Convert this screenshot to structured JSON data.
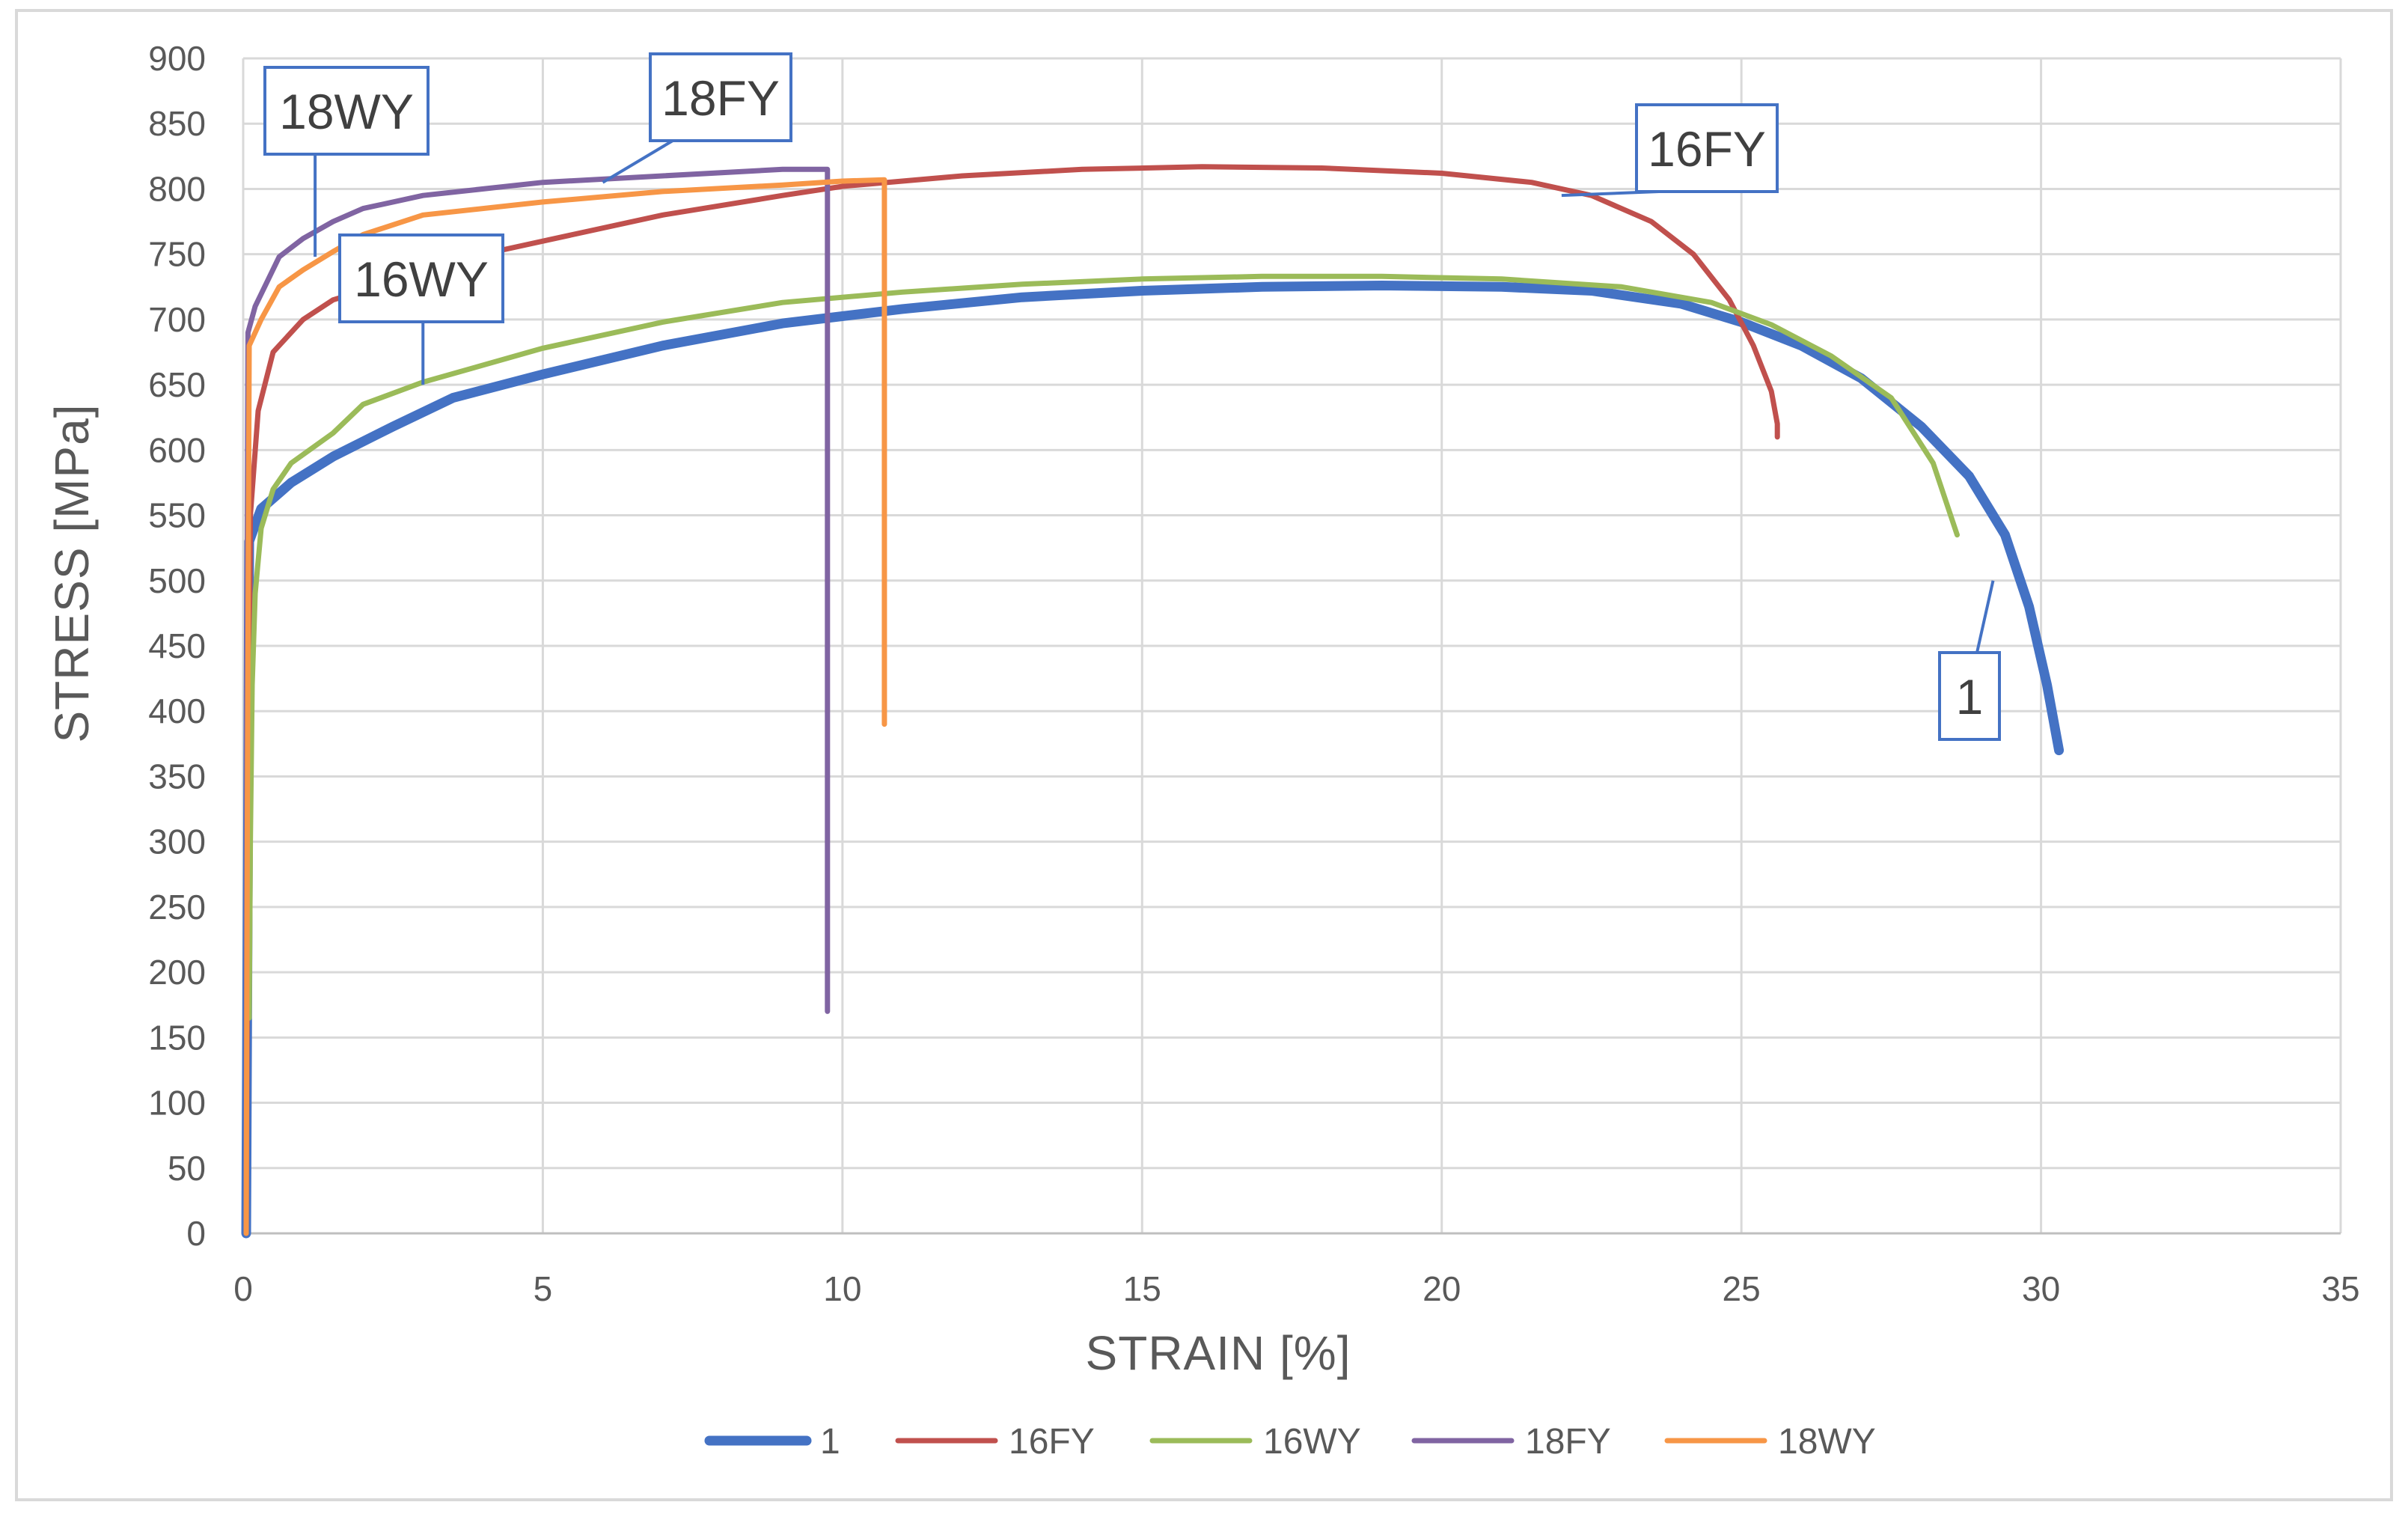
{
  "chart_data": {
    "type": "line",
    "title": "",
    "xlabel": "STRAIN [%]",
    "ylabel": "STRESS [MPa]",
    "xlim": [
      0,
      35
    ],
    "ylim": [
      0,
      900
    ],
    "xticks": [
      0,
      5,
      10,
      15,
      20,
      25,
      30,
      35
    ],
    "yticks": [
      0,
      50,
      100,
      150,
      200,
      250,
      300,
      350,
      400,
      450,
      500,
      550,
      600,
      650,
      700,
      750,
      800,
      850,
      900
    ],
    "grid": true,
    "legend_position": "bottom",
    "series": [
      {
        "name": "1",
        "color": "#4472C4",
        "points": [
          [
            0.05,
            0
          ],
          [
            0.08,
            300
          ],
          [
            0.1,
            530
          ],
          [
            0.3,
            555
          ],
          [
            0.8,
            575
          ],
          [
            1.5,
            595
          ],
          [
            2.5,
            618
          ],
          [
            3.5,
            640
          ],
          [
            5,
            658
          ],
          [
            7,
            680
          ],
          [
            9,
            697
          ],
          [
            11,
            708
          ],
          [
            13,
            717
          ],
          [
            15,
            722
          ],
          [
            17,
            725
          ],
          [
            19,
            726
          ],
          [
            21,
            725
          ],
          [
            22.5,
            722
          ],
          [
            24,
            712
          ],
          [
            25,
            698
          ],
          [
            26,
            680
          ],
          [
            27,
            655
          ],
          [
            28,
            618
          ],
          [
            28.8,
            580
          ],
          [
            29.4,
            535
          ],
          [
            29.8,
            480
          ],
          [
            30.1,
            420
          ],
          [
            30.3,
            370
          ]
        ]
      },
      {
        "name": "16FY",
        "color": "#C0504D",
        "points": [
          [
            0.05,
            0
          ],
          [
            0.08,
            300
          ],
          [
            0.12,
            550
          ],
          [
            0.25,
            630
          ],
          [
            0.5,
            675
          ],
          [
            1,
            700
          ],
          [
            1.5,
            715
          ],
          [
            2,
            722
          ],
          [
            3,
            740
          ],
          [
            5,
            760
          ],
          [
            7,
            780
          ],
          [
            9,
            795
          ],
          [
            10,
            802
          ],
          [
            12,
            810
          ],
          [
            14,
            815
          ],
          [
            16,
            817
          ],
          [
            18,
            816
          ],
          [
            20,
            812
          ],
          [
            21.5,
            805
          ],
          [
            22.5,
            795
          ],
          [
            23.5,
            775
          ],
          [
            24.2,
            750
          ],
          [
            24.8,
            715
          ],
          [
            25.2,
            680
          ],
          [
            25.5,
            645
          ],
          [
            25.6,
            620
          ],
          [
            25.6,
            610
          ]
        ]
      },
      {
        "name": "16WY",
        "color": "#9BBB59",
        "points": [
          [
            0.1,
            165
          ],
          [
            0.12,
            300
          ],
          [
            0.15,
            420
          ],
          [
            0.2,
            490
          ],
          [
            0.3,
            540
          ],
          [
            0.5,
            570
          ],
          [
            0.8,
            590
          ],
          [
            1.5,
            613
          ],
          [
            2,
            635
          ],
          [
            3,
            652
          ],
          [
            5,
            678
          ],
          [
            7,
            698
          ],
          [
            9,
            713
          ],
          [
            11,
            721
          ],
          [
            13,
            727
          ],
          [
            15,
            731
          ],
          [
            17,
            733
          ],
          [
            19,
            733
          ],
          [
            21,
            731
          ],
          [
            23,
            725
          ],
          [
            24.5,
            713
          ],
          [
            25.5,
            696
          ],
          [
            26.5,
            672
          ],
          [
            27.5,
            640
          ],
          [
            28.2,
            590
          ],
          [
            28.6,
            535
          ]
        ]
      },
      {
        "name": "18FY",
        "color": "#8064A2",
        "points": [
          [
            0.05,
            0
          ],
          [
            0.06,
            400
          ],
          [
            0.08,
            690
          ],
          [
            0.2,
            710
          ],
          [
            0.6,
            748
          ],
          [
            1,
            762
          ],
          [
            1.5,
            775
          ],
          [
            2,
            785
          ],
          [
            3,
            795
          ],
          [
            5,
            805
          ],
          [
            7,
            810
          ],
          [
            9,
            815
          ],
          [
            9.75,
            815
          ],
          [
            9.75,
            500
          ],
          [
            9.75,
            170
          ]
        ]
      },
      {
        "name": "18WY",
        "color": "#F79646",
        "points": [
          [
            0.05,
            0
          ],
          [
            0.07,
            330
          ],
          [
            0.1,
            680
          ],
          [
            0.3,
            700
          ],
          [
            0.6,
            725
          ],
          [
            1,
            738
          ],
          [
            1.5,
            752
          ],
          [
            2,
            765
          ],
          [
            3,
            780
          ],
          [
            5,
            790
          ],
          [
            7,
            798
          ],
          [
            9,
            803
          ],
          [
            10,
            806
          ],
          [
            10.7,
            807
          ],
          [
            10.7,
            600
          ],
          [
            10.7,
            390
          ]
        ]
      }
    ],
    "annotations": [
      {
        "text": "18WY",
        "x": 1.2,
        "y": 748
      },
      {
        "text": "18FY",
        "x": 6,
        "y": 805
      },
      {
        "text": "16WY",
        "x": 3,
        "y": 650
      },
      {
        "text": "16FY",
        "x": 22,
        "y": 795
      },
      {
        "text": "1",
        "x": 29.2,
        "y": 500
      }
    ],
    "legend": [
      "1",
      "16FY",
      "16WY",
      "18FY",
      "18WY"
    ]
  }
}
